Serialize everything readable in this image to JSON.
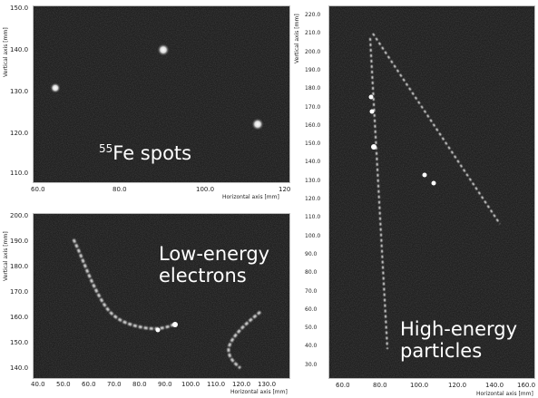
{
  "panels": {
    "fe55": {
      "caption_sup": "55",
      "caption_main": "Fe spots",
      "y_label": "Vertical axis [mm]",
      "x_label": "Horizontal axis [mm]",
      "y_ticks": [
        "150.0",
        "140.0",
        "130.0",
        "120.0",
        "110.0"
      ],
      "x_ticks": [
        "60.0",
        "80.0",
        "100.0",
        "120"
      ]
    },
    "low_energy": {
      "caption_line1": "Low-energy",
      "caption_line2": "electrons",
      "y_label": "Vertical axis [mm]",
      "x_label": "Horizontal axis [mm]",
      "y_ticks": [
        "200.0",
        "190.0",
        "180.0",
        "170.0",
        "160.0",
        "150.0",
        "140.0"
      ],
      "x_ticks": [
        "40.0",
        "50.0",
        "60.0",
        "70.0",
        "80.0",
        "90.0",
        "100.0",
        "110.0",
        "120.0",
        "130.0"
      ]
    },
    "high_energy": {
      "caption_line1": "High-energy",
      "caption_line2": "particles",
      "y_label": "Vertical axis [mm]",
      "x_label": "Horizontal axis [mm]",
      "y_ticks": [
        "220.0",
        "210.0",
        "200.0",
        "190.0",
        "180.0",
        "170.0",
        "160.0",
        "150.0",
        "140.0",
        "130.0",
        "120.0",
        "110.0",
        "100.0",
        "90.0",
        "80.0",
        "70.0",
        "60.0",
        "50.0",
        "40.0",
        "30.0"
      ],
      "x_ticks": [
        "60.0",
        "80.0",
        "100.0",
        "120.0",
        "140.0",
        "160.0"
      ]
    }
  },
  "colors": {
    "plot_bg": "#202020",
    "track": "#e8e8e8",
    "caption": "#ffffff"
  }
}
